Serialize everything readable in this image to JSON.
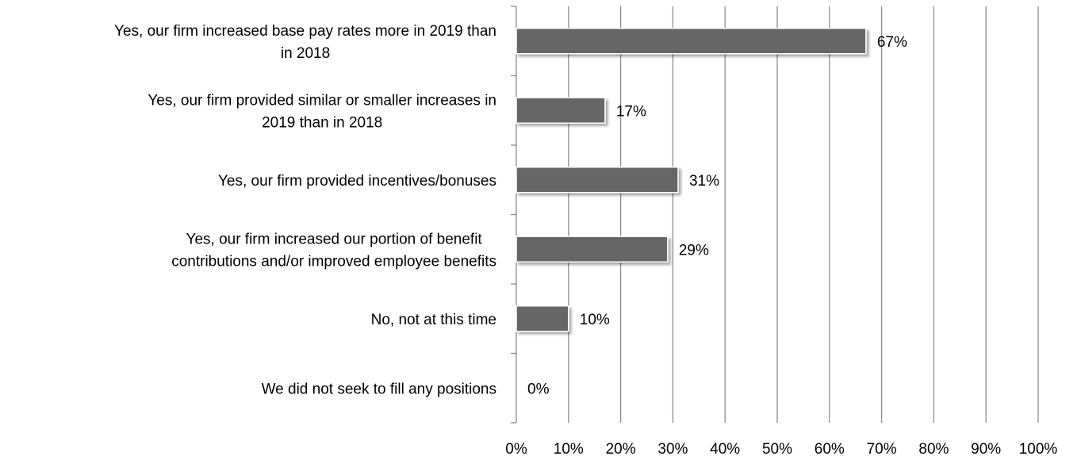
{
  "chart_data": {
    "type": "bar",
    "orientation": "horizontal",
    "categories": [
      [
        "Yes, our firm increased base pay rates more in 2019 than",
        "in 2018"
      ],
      [
        "Yes, our firm provided similar or smaller increases in",
        "2019 than in 2018"
      ],
      [
        "Yes, our firm provided incentives/bonuses"
      ],
      [
        "Yes, our firm increased our portion of benefit",
        "contributions and/or improved employee benefits"
      ],
      [
        "No, not at this time"
      ],
      [
        "We did not seek to fill any positions"
      ]
    ],
    "values": [
      67,
      17,
      31,
      29,
      10,
      0
    ],
    "data_labels": [
      "67%",
      "17%",
      "31%",
      "29%",
      "10%",
      "0%"
    ],
    "xlim": [
      0,
      100
    ],
    "xticks": [
      "0%",
      "10%",
      "20%",
      "30%",
      "40%",
      "50%",
      "60%",
      "70%",
      "80%",
      "90%",
      "100%"
    ],
    "grid": true,
    "bar_color": "#666666",
    "grid_color": "#8c8c8c"
  }
}
